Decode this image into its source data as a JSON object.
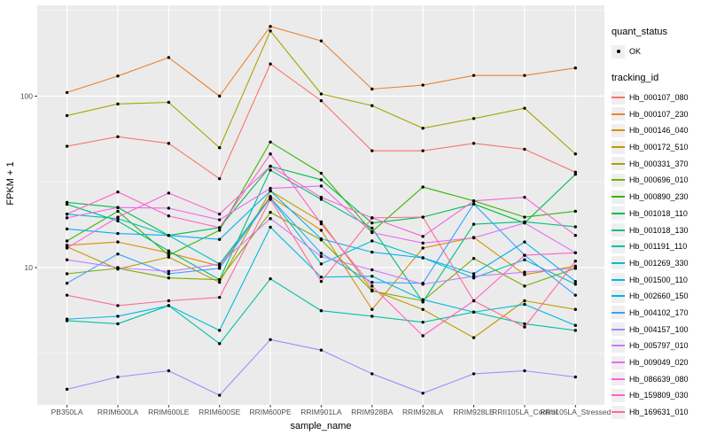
{
  "legend": {
    "quant_status_title": "quant_status",
    "ok_label": "OK",
    "tracking_id_title": "tracking_id"
  },
  "chart_data": {
    "type": "line",
    "title": "",
    "xlabel": "sample_name",
    "ylabel": "FPKM + 1",
    "y_scale": "log10",
    "y_tick_labels": [
      "100",
      "10"
    ],
    "y_major_gridlines": [
      100,
      10
    ],
    "y_minor_gridlines": [
      316.23,
      31.62,
      3.162
    ],
    "ylim_approx": [
      1.6,
      330
    ],
    "grid": "on",
    "legend_position": "right",
    "panel_bg_color": "#EBEBEB",
    "grid_color": "#FFFFFF",
    "point_color": "#000000",
    "tick_label_color": "#4D4D4D",
    "quant_status_value": "OK",
    "categories": [
      "PB350LA",
      "RRIM600LA",
      "RRIM600LE",
      "RRIM600SE",
      "RRIM600PE",
      "RRIM901LA",
      "RRIM928BA",
      "RRIM928LA",
      "RRIM928LE",
      "RRII105LA_Control",
      "RRII105LA_Stressed"
    ],
    "series": [
      {
        "name": "Hb_000107_080",
        "color": "#F8766D",
        "values": [
          51,
          58,
          53,
          33,
          154,
          94,
          48,
          48,
          53,
          49,
          36
        ]
      },
      {
        "name": "Hb_000107_230",
        "color": "#EA8331",
        "values": [
          105,
          131,
          168,
          100,
          255,
          210,
          110,
          116,
          132,
          132,
          146
        ]
      },
      {
        "name": "Hb_000146_040",
        "color": "#D89000",
        "values": [
          13.5,
          14.1,
          12.2,
          10.2,
          26,
          16.5,
          5.7,
          13,
          15,
          9.1,
          10.2
        ]
      },
      {
        "name": "Hb_000172_510",
        "color": "#C09B00",
        "values": [
          13.2,
          9.8,
          11.5,
          8.2,
          28,
          18.5,
          7.4,
          5.7,
          3.9,
          6.4,
          5.7
        ]
      },
      {
        "name": "Hb_000331_370",
        "color": "#A3A500",
        "values": [
          77,
          90,
          92,
          50,
          240,
          103,
          88,
          65,
          74,
          85,
          46
        ]
      },
      {
        "name": "Hb_000696_010",
        "color": "#7CAE00",
        "values": [
          9.2,
          9.9,
          8.7,
          8.5,
          21,
          14.5,
          7.3,
          6.4,
          11.3,
          7.8,
          9.9
        ]
      },
      {
        "name": "Hb_000890_230",
        "color": "#39B600",
        "values": [
          14.3,
          21.3,
          11.8,
          16.5,
          54,
          35.5,
          16.2,
          29.5,
          24.5,
          19.7,
          21.3
        ]
      },
      {
        "name": "Hb_001018_110",
        "color": "#00BB4E",
        "values": [
          24,
          22.4,
          15.4,
          17.1,
          39,
          32.5,
          18.2,
          19.7,
          23.5,
          18.2,
          35
        ]
      },
      {
        "name": "Hb_001018_130",
        "color": "#00BF7D",
        "values": [
          23.4,
          18.7,
          12.5,
          8.5,
          37,
          25,
          17,
          6.3,
          17.9,
          18.5,
          17.3
        ]
      },
      {
        "name": "Hb_001191_110",
        "color": "#00C1A3",
        "values": [
          4.9,
          4.7,
          6.0,
          3.6,
          8.6,
          5.6,
          5.2,
          4.8,
          5.5,
          4.7,
          4.3
        ]
      },
      {
        "name": "Hb_001269_330",
        "color": "#00BFC4",
        "values": [
          20.5,
          19.3,
          15.4,
          10.5,
          25.5,
          10.5,
          14.3,
          11.4,
          8.7,
          11.1,
          8.0
        ]
      },
      {
        "name": "Hb_001500_110",
        "color": "#00BAE0",
        "values": [
          5.0,
          5.2,
          6.0,
          4.3,
          17.2,
          8.8,
          8.9,
          6.5,
          5.5,
          6.1,
          4.6
        ]
      },
      {
        "name": "Hb_002660_150",
        "color": "#00B0F6",
        "values": [
          16.8,
          15.8,
          15.4,
          14.6,
          28,
          14.7,
          12.3,
          11.4,
          9.2,
          14.1,
          8.3
        ]
      },
      {
        "name": "Hb_004102_170",
        "color": "#35A2FF",
        "values": [
          8.1,
          12,
          9.2,
          9.9,
          25.5,
          12.1,
          8.2,
          8.1,
          23.5,
          11.8,
          6.9
        ]
      },
      {
        "name": "Hb_004157_100",
        "color": "#9590FF",
        "values": [
          1.95,
          2.3,
          2.5,
          1.8,
          3.8,
          3.3,
          2.4,
          1.85,
          2.4,
          2.5,
          2.3
        ]
      },
      {
        "name": "Hb_005797_010",
        "color": "#C77CFF",
        "values": [
          11.1,
          10,
          9.5,
          10.5,
          19.3,
          11.6,
          9.7,
          8.0,
          8.9,
          9.4,
          9.9
        ]
      },
      {
        "name": "Hb_009049_020",
        "color": "#E76BF3",
        "values": [
          19.5,
          22.4,
          22.2,
          19,
          29,
          29.9,
          16,
          13.9,
          14.9,
          18.2,
          12.2
        ]
      },
      {
        "name": "Hb_086639_080",
        "color": "#FA62DB",
        "values": [
          13,
          19.7,
          27.2,
          20.5,
          39,
          25.7,
          19.5,
          15.2,
          24.5,
          25.7,
          15.4
        ]
      },
      {
        "name": "Hb_159809_030",
        "color": "#FF61C9",
        "values": [
          20.5,
          27.6,
          20,
          17.1,
          46,
          18,
          7.8,
          4.0,
          6.4,
          11.8,
          12.2
        ]
      },
      {
        "name": "Hb_169631_010",
        "color": "#FF6A98",
        "values": [
          6.9,
          6.0,
          6.4,
          6.7,
          25,
          8.3,
          19.5,
          19.7,
          6.4,
          4.5,
          10.9
        ]
      }
    ]
  }
}
